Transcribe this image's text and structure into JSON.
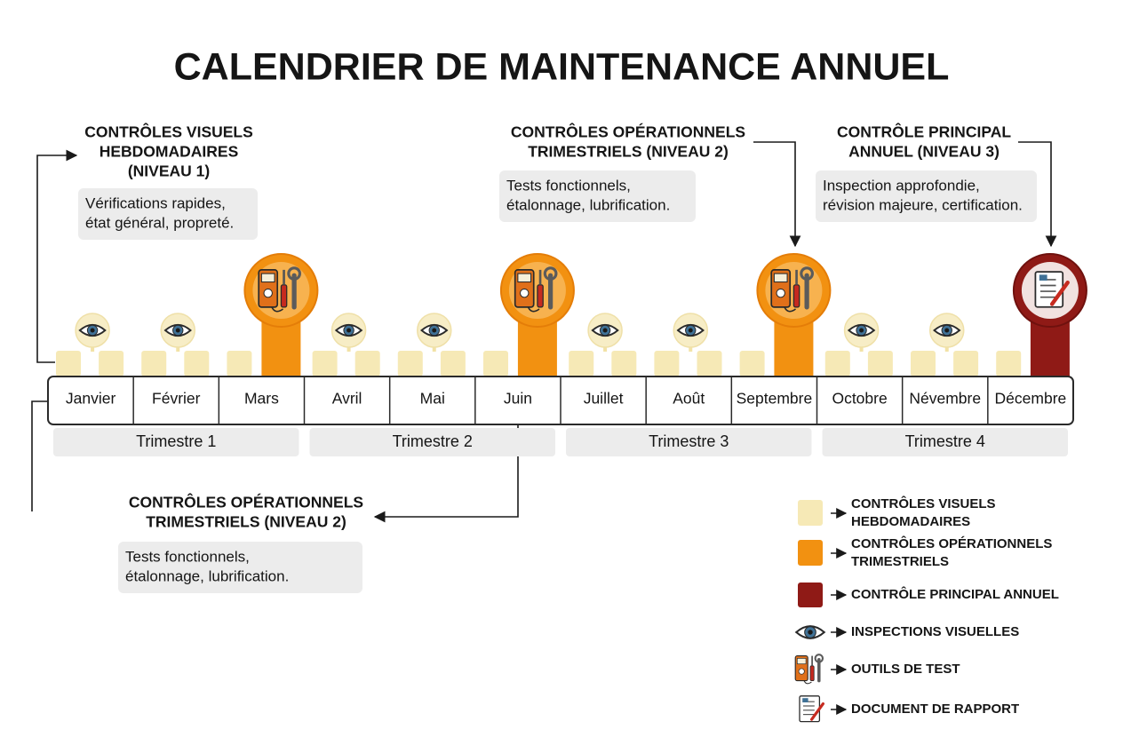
{
  "title": "CALENDRIER DE MAINTENANCE ANNUEL",
  "callouts": [
    {
      "title": [
        "CONTRÔLES VISUELS",
        "HEBDOMADAIRES",
        "(NIVEAU 1)"
      ],
      "description": [
        "Vérifications rapides,",
        "état général, propreté."
      ]
    },
    {
      "title": [
        "CONTRÔLES OPÉRATIONNELS",
        "TRIMESTRIELS (NIVEAU 2)"
      ],
      "description": [
        "Tests fonctionnels,",
        "étalonnage, lubrification."
      ]
    },
    {
      "title": [
        "CONTRÔLE PRINCIPAL",
        "ANNUEL (NIVEAU 3)"
      ],
      "description": [
        "Inspection approfondie,",
        "révision majeure, certification."
      ]
    },
    {
      "title": [
        "CONTRÔLES OPÉRATIONNELS",
        "TRIMESTRIELS (NIVEAU 2)"
      ],
      "description": [
        "Tests fonctionnels,",
        "étalonnage, lubrification."
      ]
    }
  ],
  "months": [
    "Janvier",
    "Février",
    "Mars",
    "Avril",
    "Mai",
    "Juin",
    "Juillet",
    "Août",
    "Septembre",
    "Octobre",
    "Névembre",
    "Décembre"
  ],
  "quarters": [
    "Trimestre 1",
    "Trimestre 2",
    "Trimestre 3",
    "Trimestre 4"
  ],
  "legend": [
    [
      "CONTRÔLES VISUELS",
      "HEBDOMADAIRES"
    ],
    [
      "CONTRÔLES OPÉRATIONNELS",
      "TRIMESTRIELS"
    ],
    [
      "CONTRÔLE PRINCIPAL ANNUEL"
    ],
    [
      "INSPECTIONS VISUELLES"
    ],
    [
      "OUTILS DE TEST"
    ],
    [
      "DOCUMENT DE RAPPORT"
    ]
  ]
}
